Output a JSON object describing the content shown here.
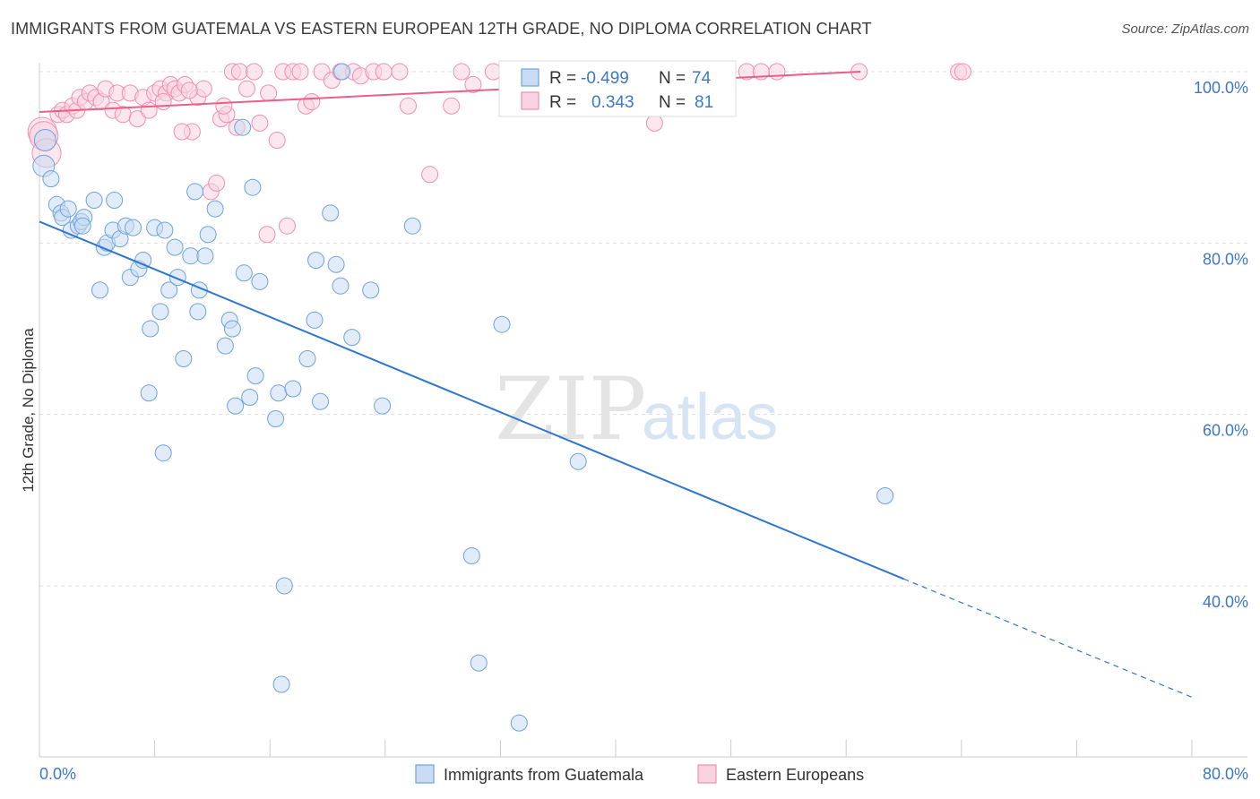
{
  "title": "IMMIGRANTS FROM GUATEMALA VS EASTERN EUROPEAN 12TH GRADE, NO DIPLOMA CORRELATION CHART",
  "source": "Source: ZipAtlas.com",
  "watermark": {
    "zip": "ZIP",
    "atlas": "atlas"
  },
  "colors": {
    "blue": "#6fa3dc",
    "blue_fill": "#c9dcf3",
    "blue_line": "#2f76d2",
    "pink": "#f08fb0",
    "pink_fill": "#f9d3e0",
    "pink_line": "#e8608a",
    "axis_text": "#3d78c7",
    "grid": "#dddddd"
  },
  "stats": {
    "r_label": "R =",
    "n_label": "N =",
    "series": [
      {
        "r": "-0.499",
        "n": "74"
      },
      {
        "r": "0.343",
        "n": "81"
      }
    ]
  },
  "chart_data": {
    "type": "scatter",
    "title": "IMMIGRANTS FROM GUATEMALA VS EASTERN EUROPEAN 12TH GRADE, NO DIPLOMA CORRELATION CHART",
    "xlabel": "",
    "ylabel": "12th Grade, No Diploma",
    "xlim": [
      0,
      80
    ],
    "ylim": [
      19.5,
      101
    ],
    "x_tick_labels": [
      "0.0%",
      "80.0%"
    ],
    "y_ticks": [
      40,
      60,
      80,
      100
    ],
    "y_tick_labels": [
      "40.0%",
      "60.0%",
      "80.0%",
      "100.0%"
    ],
    "grid": true,
    "legend_position": "bottom-center",
    "series": [
      {
        "name": "Immigrants from Guatemala",
        "color": "blue",
        "trend": {
          "x0": 0,
          "y0": 82.5,
          "x1": 60,
          "y1": 40.8,
          "dash_to_x": 80,
          "dash_to_y": 27.0
        },
        "points": [
          [
            0.4,
            92.0
          ],
          [
            0.3,
            89.0
          ],
          [
            0.8,
            87.5
          ],
          [
            1.2,
            84.5
          ],
          [
            1.5,
            83.5
          ],
          [
            1.6,
            83.0
          ],
          [
            2.0,
            84.0
          ],
          [
            2.2,
            81.5
          ],
          [
            2.7,
            82.0
          ],
          [
            2.9,
            82.5
          ],
          [
            3.1,
            83.0
          ],
          [
            3.0,
            82.0
          ],
          [
            3.8,
            85.0
          ],
          [
            4.2,
            74.5
          ],
          [
            4.5,
            79.5
          ],
          [
            4.7,
            80.0
          ],
          [
            5.1,
            81.5
          ],
          [
            5.2,
            85.0
          ],
          [
            5.6,
            80.5
          ],
          [
            6.0,
            82.0
          ],
          [
            6.3,
            76.0
          ],
          [
            6.5,
            81.8
          ],
          [
            6.9,
            77.0
          ],
          [
            7.2,
            78.0
          ],
          [
            7.7,
            70.0
          ],
          [
            8.0,
            81.8
          ],
          [
            8.4,
            72.0
          ],
          [
            8.7,
            81.5
          ],
          [
            9.0,
            74.5
          ],
          [
            9.4,
            79.5
          ],
          [
            9.6,
            76.0
          ],
          [
            10.0,
            66.5
          ],
          [
            10.5,
            78.5
          ],
          [
            10.8,
            86.0
          ],
          [
            11.1,
            74.5
          ],
          [
            11.5,
            78.5
          ],
          [
            11.7,
            81.0
          ],
          [
            12.2,
            84.0
          ],
          [
            12.9,
            68.0
          ],
          [
            13.2,
            71.0
          ],
          [
            13.4,
            70.0
          ],
          [
            13.6,
            61.0
          ],
          [
            14.2,
            76.5
          ],
          [
            14.6,
            62.0
          ],
          [
            14.8,
            86.5
          ],
          [
            15.0,
            64.5
          ],
          [
            15.3,
            75.5
          ],
          [
            16.4,
            59.5
          ],
          [
            16.6,
            62.5
          ],
          [
            16.8,
            28.5
          ],
          [
            17.0,
            40.0
          ],
          [
            17.6,
            63.0
          ],
          [
            18.6,
            66.5
          ],
          [
            19.1,
            71.0
          ],
          [
            19.2,
            78.0
          ],
          [
            19.5,
            61.5
          ],
          [
            20.2,
            83.5
          ],
          [
            20.6,
            77.5
          ],
          [
            20.9,
            75.0
          ],
          [
            21.7,
            69.0
          ],
          [
            23.0,
            74.5
          ],
          [
            23.8,
            61.0
          ],
          [
            25.9,
            82.0
          ],
          [
            7.6,
            62.5
          ],
          [
            8.6,
            55.5
          ],
          [
            11.0,
            72.0
          ],
          [
            14.1,
            93.5
          ],
          [
            30.0,
            43.5
          ],
          [
            30.5,
            31.0
          ],
          [
            32.1,
            70.5
          ],
          [
            33.3,
            24.0
          ],
          [
            37.4,
            54.5
          ],
          [
            58.7,
            50.5
          ],
          [
            21.0,
            100.0
          ]
        ]
      },
      {
        "name": "Eastern Europeans",
        "color": "pink",
        "trend": {
          "x0": 0,
          "y0": 95.3,
          "x1": 57,
          "y1": 100.0
        },
        "points": [
          [
            0.2,
            93.0
          ],
          [
            0.3,
            92.5
          ],
          [
            0.5,
            90.5
          ],
          [
            1.3,
            95.0
          ],
          [
            1.6,
            95.5
          ],
          [
            1.9,
            95.0
          ],
          [
            2.3,
            96.0
          ],
          [
            2.6,
            95.5
          ],
          [
            2.8,
            97.0
          ],
          [
            3.2,
            96.5
          ],
          [
            3.5,
            97.5
          ],
          [
            3.9,
            97.0
          ],
          [
            4.3,
            96.5
          ],
          [
            4.6,
            98.0
          ],
          [
            5.1,
            95.5
          ],
          [
            5.4,
            97.5
          ],
          [
            5.8,
            95.0
          ],
          [
            6.3,
            97.5
          ],
          [
            6.8,
            94.5
          ],
          [
            7.2,
            97.0
          ],
          [
            7.6,
            95.5
          ],
          [
            8.0,
            97.5
          ],
          [
            8.4,
            98.0
          ],
          [
            8.8,
            97.5
          ],
          [
            9.1,
            98.5
          ],
          [
            9.4,
            98.0
          ],
          [
            9.7,
            97.5
          ],
          [
            10.1,
            98.5
          ],
          [
            10.6,
            93.0
          ],
          [
            11.0,
            97.0
          ],
          [
            11.4,
            98.0
          ],
          [
            11.9,
            86.0
          ],
          [
            12.3,
            87.0
          ],
          [
            12.6,
            94.5
          ],
          [
            13.0,
            95.0
          ],
          [
            13.4,
            100.0
          ],
          [
            13.9,
            100.0
          ],
          [
            14.4,
            98.0
          ],
          [
            14.9,
            100.0
          ],
          [
            15.3,
            94.0
          ],
          [
            15.9,
            97.5
          ],
          [
            16.5,
            92.0
          ],
          [
            16.9,
            100.0
          ],
          [
            17.2,
            82.0
          ],
          [
            17.6,
            100.0
          ],
          [
            18.1,
            100.0
          ],
          [
            18.5,
            96.0
          ],
          [
            18.9,
            96.5
          ],
          [
            19.6,
            100.0
          ],
          [
            20.3,
            99.0
          ],
          [
            20.9,
            100.0
          ],
          [
            21.8,
            100.0
          ],
          [
            22.3,
            99.5
          ],
          [
            23.2,
            100.0
          ],
          [
            23.9,
            100.0
          ],
          [
            25.0,
            100.0
          ],
          [
            25.6,
            96.0
          ],
          [
            27.1,
            88.0
          ],
          [
            28.6,
            96.0
          ],
          [
            29.3,
            100.0
          ],
          [
            30.1,
            98.5
          ],
          [
            31.5,
            100.0
          ],
          [
            34.4,
            100.0
          ],
          [
            36.0,
            97.5
          ],
          [
            37.5,
            100.0
          ],
          [
            40.9,
            100.0
          ],
          [
            41.3,
            100.0
          ],
          [
            42.7,
            94.0
          ],
          [
            45.3,
            100.0
          ],
          [
            49.1,
            100.0
          ],
          [
            50.1,
            100.0
          ],
          [
            51.2,
            100.0
          ],
          [
            56.9,
            100.0
          ],
          [
            63.8,
            100.0
          ],
          [
            64.1,
            100.0
          ],
          [
            15.8,
            81.0
          ],
          [
            13.7,
            93.5
          ],
          [
            12.8,
            96.0
          ],
          [
            10.4,
            97.8
          ],
          [
            9.9,
            93.0
          ],
          [
            8.6,
            96.5
          ]
        ]
      }
    ]
  },
  "legend": {
    "items": [
      {
        "label": "Immigrants from Guatemala"
      },
      {
        "label": "Eastern Europeans"
      }
    ]
  }
}
